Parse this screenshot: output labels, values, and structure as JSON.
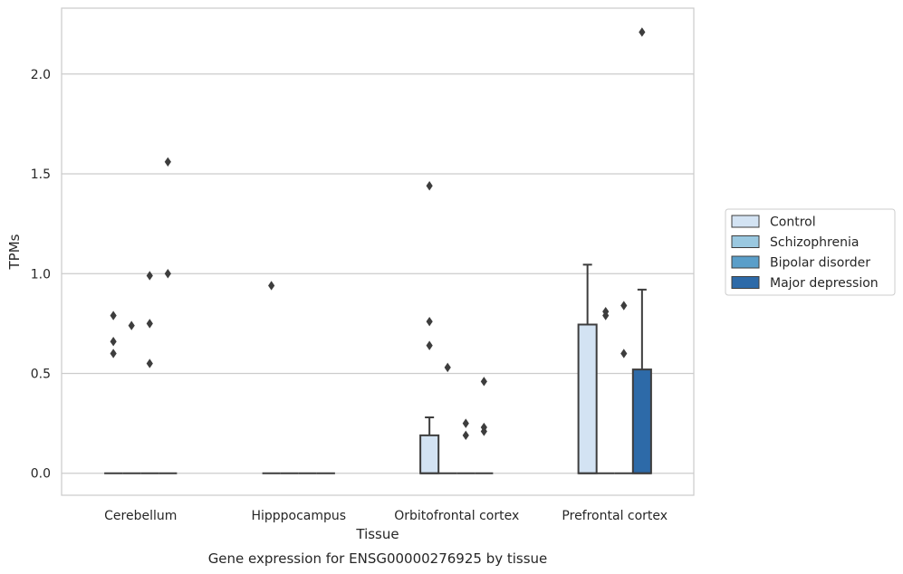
{
  "chart_data": {
    "type": "box",
    "title": "",
    "caption": "Gene expression for ENSG00000276925 by tissue",
    "xlabel": "Tissue",
    "ylabel": "TPMs",
    "ylim": [
      -0.11,
      2.33
    ],
    "yticks": [
      0.0,
      0.5,
      1.0,
      1.5,
      2.0
    ],
    "ytick_labels": [
      "0.0",
      "0.5",
      "1.0",
      "1.5",
      "2.0"
    ],
    "grid": "horizontal",
    "legend_position": "right",
    "categories": [
      "Cerebellum",
      "Hipppocampus",
      "Orbitofrontal cortex",
      "Prefrontal cortex"
    ],
    "series": [
      {
        "name": "Control",
        "color": "#d3e3f3",
        "boxes": [
          {
            "q1": 0,
            "median": 0,
            "q3": 0,
            "whisker_low": 0,
            "whisker_high": 0,
            "outliers": [
              0.6,
              0.66,
              0.79
            ]
          },
          {
            "q1": 0,
            "median": 0,
            "q3": 0,
            "whisker_low": 0,
            "whisker_high": 0,
            "outliers": [
              0.94
            ]
          },
          {
            "q1": 0,
            "median": 0,
            "q3": 0.19,
            "whisker_low": 0,
            "whisker_high": 0.28,
            "outliers": [
              0.64,
              0.76,
              1.44
            ]
          },
          {
            "q1": 0,
            "median": 0,
            "q3": 0.745,
            "whisker_low": 0,
            "whisker_high": 1.045,
            "outliers": []
          }
        ]
      },
      {
        "name": "Schizophrenia",
        "color": "#9ac8e0",
        "boxes": [
          {
            "q1": 0,
            "median": 0,
            "q3": 0,
            "whisker_low": 0,
            "whisker_high": 0,
            "outliers": [
              0.74
            ]
          },
          {
            "q1": 0,
            "median": 0,
            "q3": 0,
            "whisker_low": 0,
            "whisker_high": 0,
            "outliers": []
          },
          {
            "q1": 0,
            "median": 0,
            "q3": 0,
            "whisker_low": 0,
            "whisker_high": 0,
            "outliers": [
              0.53
            ]
          },
          {
            "q1": 0,
            "median": 0,
            "q3": 0,
            "whisker_low": 0,
            "whisker_high": 0,
            "outliers": [
              0.79,
              0.81
            ]
          }
        ]
      },
      {
        "name": "Bipolar disorder",
        "color": "#5a9ec9",
        "boxes": [
          {
            "q1": 0,
            "median": 0,
            "q3": 0,
            "whisker_low": 0,
            "whisker_high": 0,
            "outliers": [
              0.55,
              0.75,
              0.99
            ]
          },
          {
            "q1": 0,
            "median": 0,
            "q3": 0,
            "whisker_low": 0,
            "whisker_high": 0,
            "outliers": []
          },
          {
            "q1": 0,
            "median": 0,
            "q3": 0,
            "whisker_low": 0,
            "whisker_high": 0,
            "outliers": [
              0.19,
              0.25
            ]
          },
          {
            "q1": 0,
            "median": 0,
            "q3": 0,
            "whisker_low": 0,
            "whisker_high": 0,
            "outliers": [
              0.6,
              0.84
            ]
          }
        ]
      },
      {
        "name": "Major depression",
        "color": "#2d6aa8",
        "boxes": [
          {
            "q1": 0,
            "median": 0,
            "q3": 0,
            "whisker_low": 0,
            "whisker_high": 0,
            "outliers": [
              1.0,
              1.56
            ]
          },
          {
            "q1": 0,
            "median": 0,
            "q3": 0,
            "whisker_low": 0,
            "whisker_high": 0,
            "outliers": []
          },
          {
            "q1": 0,
            "median": 0,
            "q3": 0,
            "whisker_low": 0,
            "whisker_high": 0,
            "outliers": [
              0.21,
              0.23,
              0.46
            ]
          },
          {
            "q1": 0,
            "median": 0,
            "q3": 0.52,
            "whisker_low": 0,
            "whisker_high": 0.92,
            "outliers": [
              2.21
            ]
          }
        ]
      }
    ]
  }
}
